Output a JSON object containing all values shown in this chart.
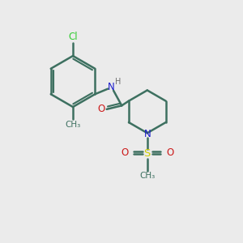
{
  "background_color": "#ebebeb",
  "bond_color": "#3d7060",
  "bond_width": 1.8,
  "atom_colors": {
    "N_amide": "#1a1acc",
    "N_pipe": "#1a1acc",
    "H": "#707070",
    "O": "#cc1a1a",
    "S": "#cccc00",
    "Cl": "#33cc33"
  },
  "figsize": [
    3.0,
    3.0
  ],
  "dpi": 100,
  "xlim": [
    0,
    10
  ],
  "ylim": [
    0,
    10
  ]
}
